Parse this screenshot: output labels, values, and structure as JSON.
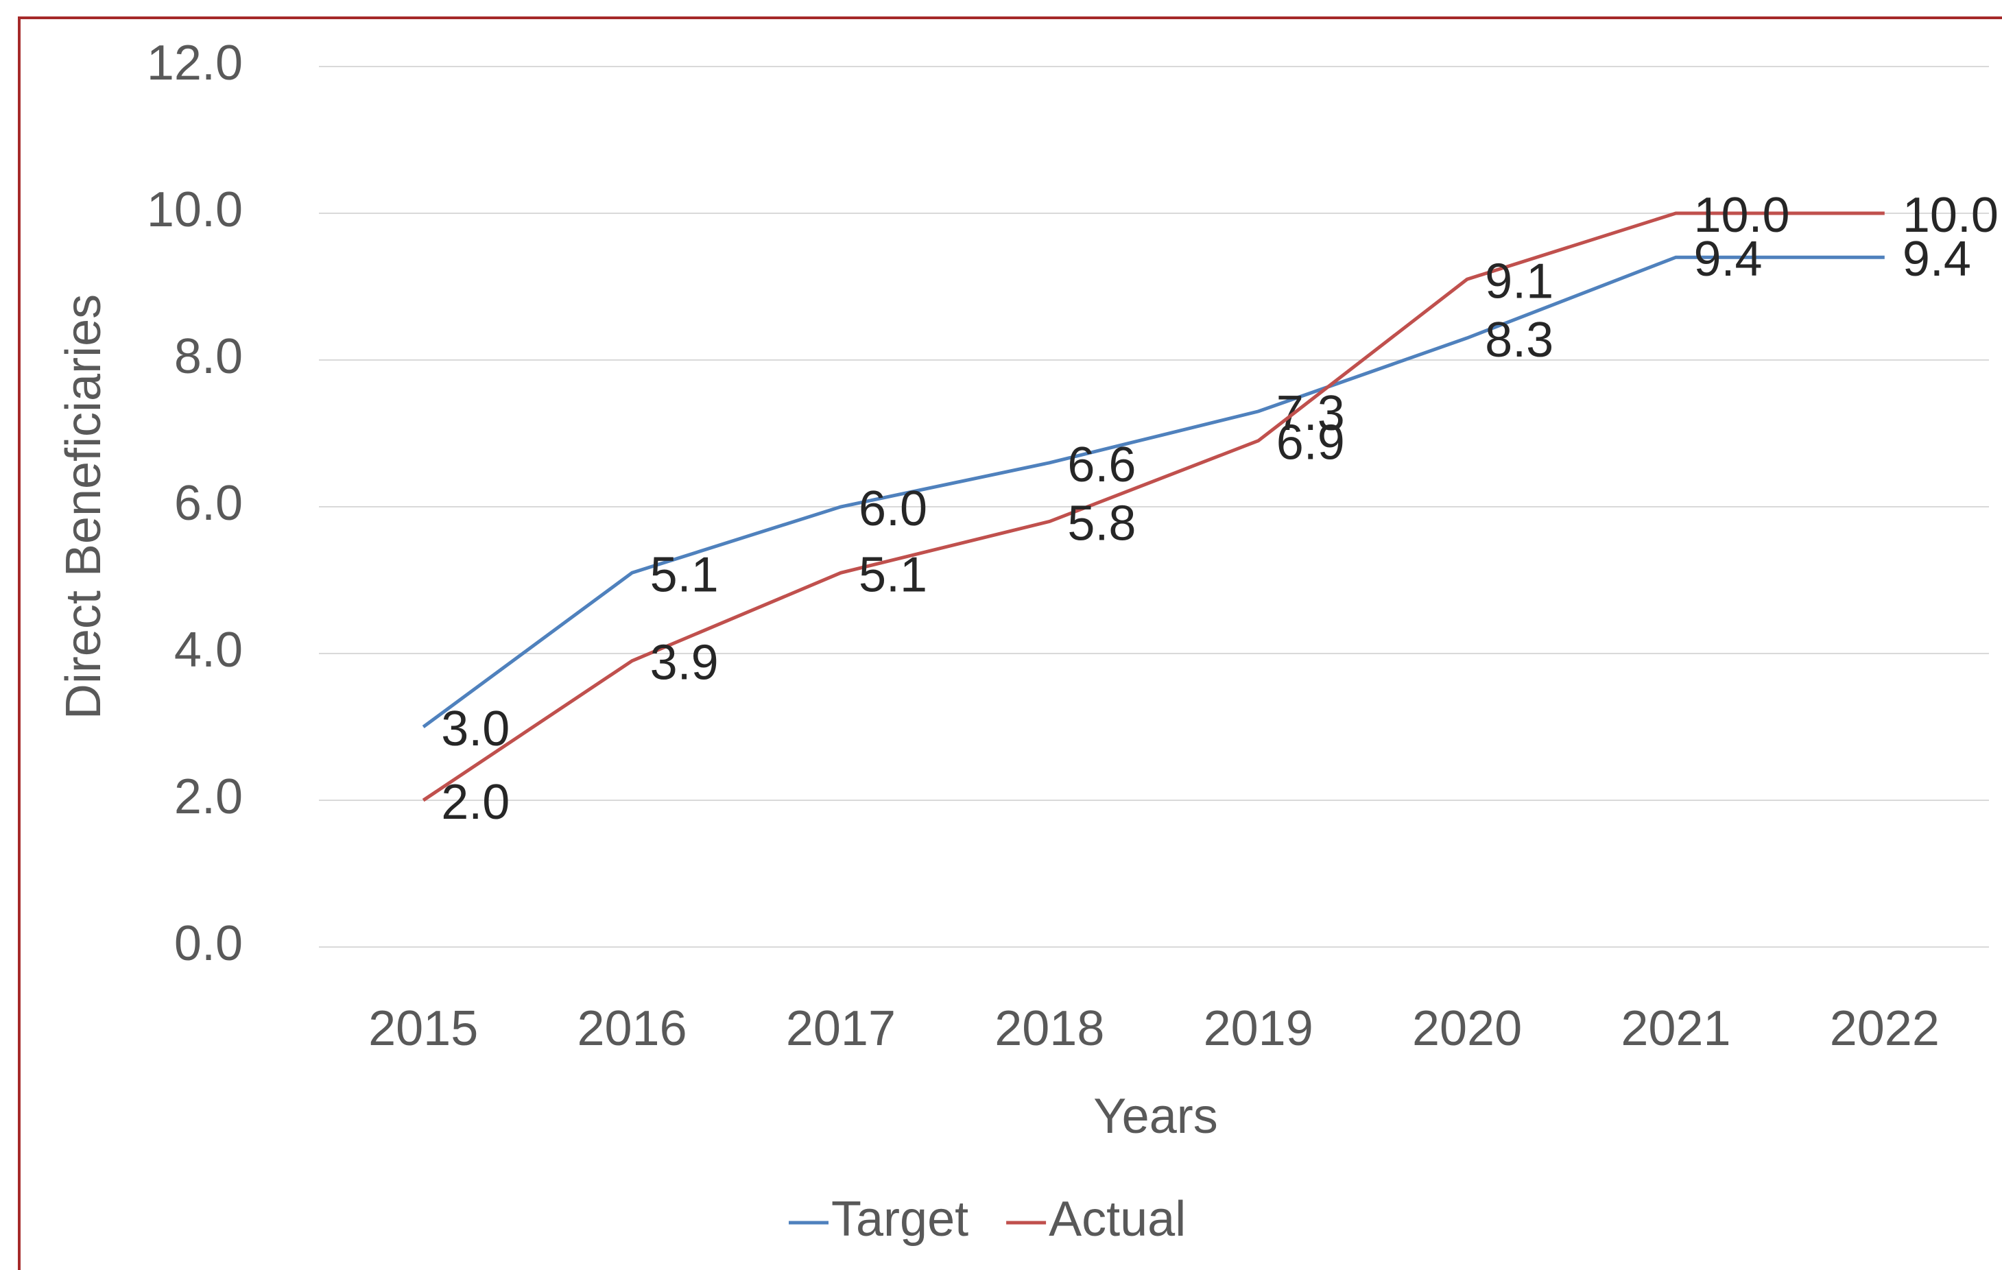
{
  "chart_data": {
    "type": "line",
    "x_label": "Years",
    "y_label": "Direct Beneficiaries",
    "categories": [
      "2015",
      "2016",
      "2017",
      "2018",
      "2019",
      "2020",
      "2021",
      "2022"
    ],
    "series": [
      {
        "name": "Target",
        "color": "#4f81bd",
        "values": [
          3.0,
          5.1,
          6.0,
          6.6,
          7.3,
          8.3,
          9.4,
          9.4
        ],
        "value_labels": [
          "3.0",
          "5.1",
          "6.0",
          "6.6",
          "7.3",
          "8.3",
          "9.4",
          "9.4"
        ]
      },
      {
        "name": "Actual",
        "color": "#c0504d",
        "values": [
          2.0,
          3.9,
          5.1,
          5.8,
          6.9,
          9.1,
          10.0,
          10.0
        ],
        "value_labels": [
          "2.0",
          "3.9",
          "5.1",
          "5.8",
          "6.9",
          "9.1",
          "10.0",
          "10.0"
        ]
      }
    ],
    "ylim": [
      0,
      12
    ],
    "yticks": [
      {
        "value": 0,
        "label": "0.0"
      },
      {
        "value": 2,
        "label": "2.0"
      },
      {
        "value": 4,
        "label": "4.0"
      },
      {
        "value": 6,
        "label": "6.0"
      },
      {
        "value": 8,
        "label": "8.0"
      },
      {
        "value": 10,
        "label": "10.0"
      },
      {
        "value": 12,
        "label": "12.0"
      }
    ],
    "grid": true,
    "legend": "bottom"
  }
}
